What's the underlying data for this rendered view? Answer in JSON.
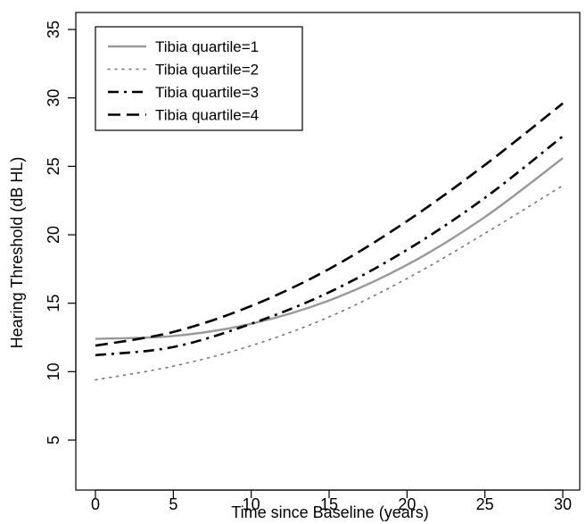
{
  "chart_data": {
    "type": "line",
    "title": "",
    "xlabel": "Time since Baseline (years)",
    "ylabel": "Hearing Threshold (dB HL)",
    "xlim": [
      0,
      30
    ],
    "ylim": [
      5,
      35
    ],
    "xticks": [
      0,
      5,
      10,
      15,
      20,
      25,
      30
    ],
    "yticks": [
      5,
      10,
      15,
      20,
      25,
      30,
      35
    ],
    "grid": false,
    "legend_position": "top-left",
    "x": [
      0,
      5,
      10,
      15,
      20,
      25,
      30
    ],
    "series": [
      {
        "name": "Tibia quartile=1",
        "style": "solid",
        "color": "#999999",
        "values": [
          12.4,
          12.6,
          13.5,
          15.2,
          17.8,
          21.3,
          25.6
        ]
      },
      {
        "name": "Tibia quartile=2",
        "style": "dotted",
        "color": "#777777",
        "values": [
          9.4,
          10.4,
          11.9,
          14.0,
          16.8,
          20.1,
          23.6
        ]
      },
      {
        "name": "Tibia quartile=3",
        "style": "dashdot",
        "color": "#000000",
        "values": [
          11.2,
          11.8,
          13.5,
          15.8,
          18.9,
          22.7,
          27.2
        ]
      },
      {
        "name": "Tibia quartile=4",
        "style": "longdash",
        "color": "#000000",
        "values": [
          11.9,
          12.9,
          14.8,
          17.5,
          21.0,
          25.1,
          29.6
        ]
      }
    ]
  }
}
